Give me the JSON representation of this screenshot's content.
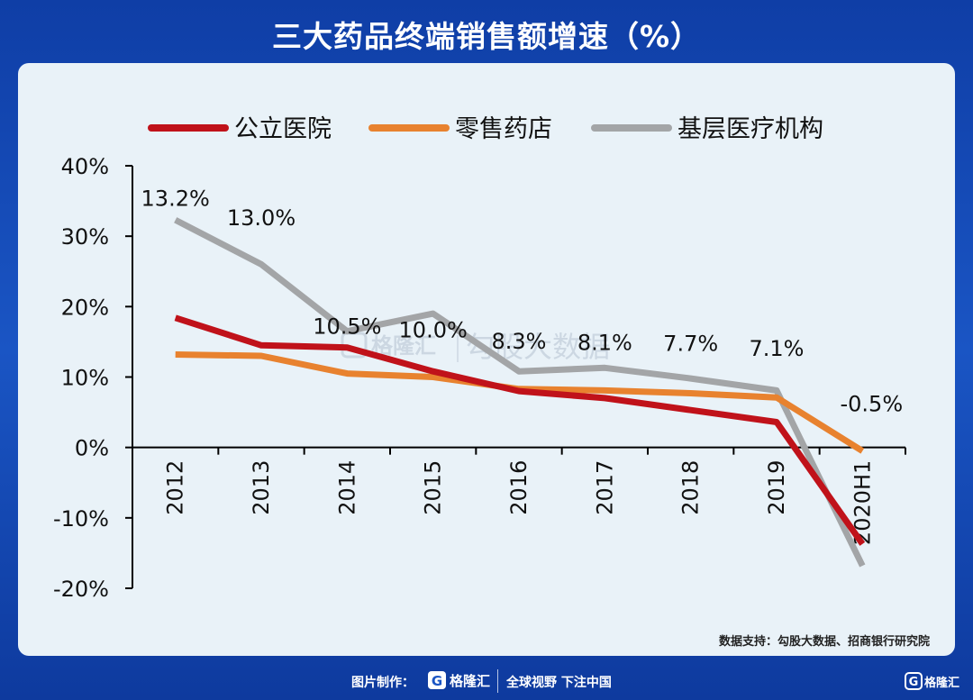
{
  "title": "三大药品终端销售额增速（%）",
  "source": "数据支持：勾股大数据、招商银行研究院",
  "footer": {
    "credit": "图片制作：",
    "brand": "格隆汇",
    "slogan": "全球视野 下注中国"
  },
  "watermark": {
    "brand": "格隆汇",
    "text": "勾股大数据"
  },
  "colors": {
    "public_hospital": "#c0121a",
    "retail_pharmacy": "#e8822f",
    "primary_care": "#a3a5a7",
    "axis": "#000000"
  },
  "chart_data": {
    "type": "line",
    "title": "三大药品终端销售额增速（%）",
    "categories": [
      "2012",
      "2013",
      "2014",
      "2015",
      "2016",
      "2017",
      "2018",
      "2019",
      "2020H1"
    ],
    "ylim": [
      -20,
      40
    ],
    "yticks": [
      "-20%",
      "-10%",
      "0%",
      "10%",
      "20%",
      "30%",
      "40%"
    ],
    "ytick_values": [
      -20,
      -10,
      0,
      10,
      20,
      30,
      40
    ],
    "legend_position": "top",
    "grid": false,
    "series": [
      {
        "name": "公立医院",
        "color": "#c0121a",
        "values": [
          18.4,
          14.5,
          14.2,
          10.8,
          8.0,
          7.0,
          5.3,
          3.6,
          -13.7
        ]
      },
      {
        "name": "零售药店",
        "color": "#e8822f",
        "values": [
          13.2,
          13.0,
          10.5,
          10.0,
          8.3,
          8.1,
          7.7,
          7.1,
          -0.5
        ]
      },
      {
        "name": "基层医疗机构",
        "color": "#a3a5a7",
        "values": [
          32.3,
          26.0,
          16.5,
          19.0,
          10.8,
          11.3,
          9.8,
          8.1,
          -16.8
        ]
      }
    ],
    "data_labels": [
      "13.2%",
      "13.0%",
      "10.5%",
      "10.0%",
      "8.3%",
      "8.1%",
      "7.7%",
      "7.1%",
      "-0.5%"
    ]
  }
}
